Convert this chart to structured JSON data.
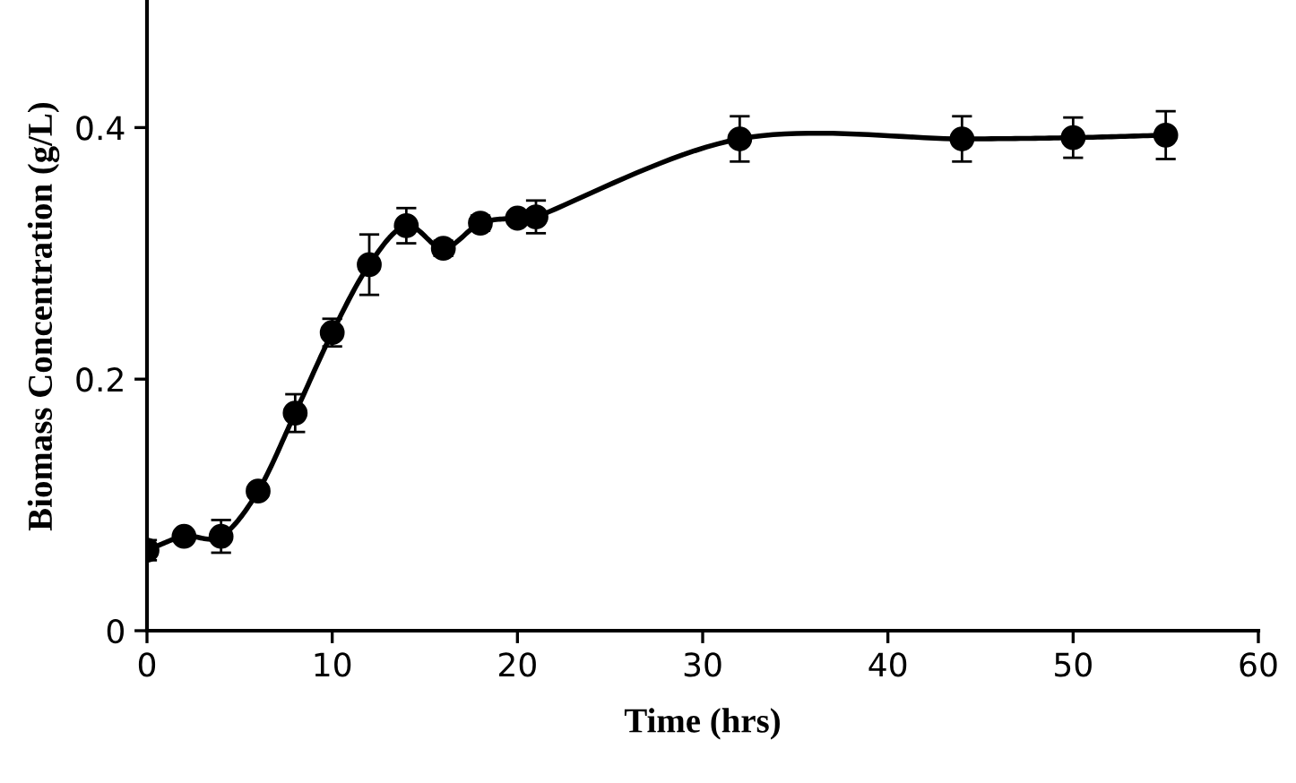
{
  "chart_data": {
    "type": "line",
    "xlabel": "Time (hrs)",
    "ylabel": "Biomass Concentration (g/L)",
    "x": [
      0,
      2,
      4,
      6,
      8,
      10,
      12,
      14,
      16,
      18,
      20,
      21,
      32,
      44,
      50,
      55
    ],
    "series": [
      {
        "color": "#000000",
        "values": [
          0.064,
          0.075,
          0.075,
          0.111,
          0.173,
          0.237,
          0.291,
          0.322,
          0.304,
          0.324,
          0.328,
          0.329,
          0.391,
          0.391,
          0.392,
          0.394
        ],
        "errors": [
          0.008,
          null,
          0.013,
          null,
          0.015,
          0.011,
          0.024,
          0.014,
          0.006,
          0.006,
          null,
          0.013,
          0.018,
          0.018,
          0.016,
          0.019
        ]
      }
    ],
    "xlim": [
      0,
      60
    ],
    "xticks": [
      0,
      10,
      20,
      30,
      40,
      50,
      60
    ],
    "ylim": [
      0,
      0.5
    ],
    "yticks": [
      0,
      0.2,
      0.4
    ],
    "marker": "circle",
    "line_style": "solid",
    "grid": false,
    "legend": false
  }
}
